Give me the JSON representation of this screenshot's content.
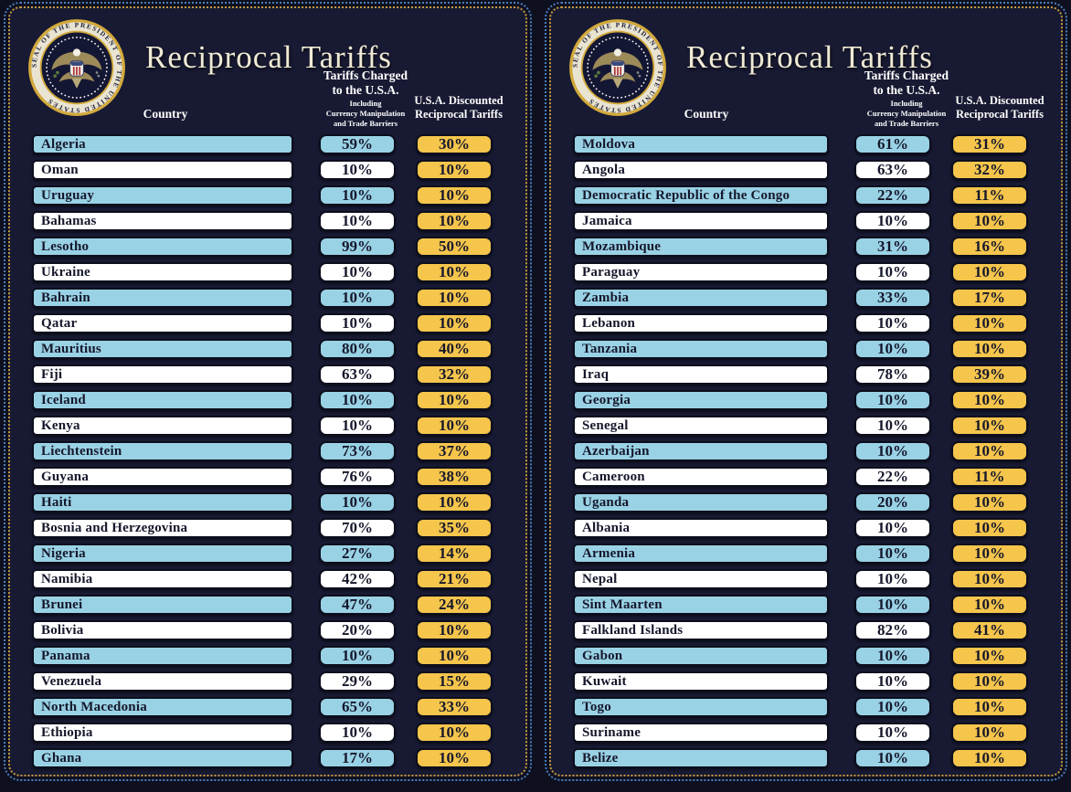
{
  "colors": {
    "page_bg": "#0f101f",
    "panel_bg": "#181a33",
    "blue": "#9ad2e5",
    "gold": "#f5c54c",
    "white_row": "#ffffff",
    "border_gold": "#c49a3f",
    "border_blue": "#4a7fc1",
    "cell_border": "#0c0e1d",
    "row_text": "#15172b",
    "header_text": "#ffffff",
    "title_text": "#f0ead4"
  },
  "header": {
    "title": "Reciprocal Tariffs",
    "country_label": "Country",
    "charged_line1": "Tariffs Charged",
    "charged_line2": "to the U.S.A.",
    "charged_sub1": "Including",
    "charged_sub2": "Currency Manipulation",
    "charged_sub3": "and Trade Barriers",
    "discount_line1": "U.S.A. Discounted",
    "discount_line2": "Reciprocal Tariffs",
    "seal_text": "SEAL OF THE PRESIDENT OF THE UNITED STATES"
  },
  "chart_data": [
    {
      "type": "table",
      "title": "Reciprocal Tariffs",
      "columns": [
        "Country",
        "Tariffs Charged to the U.S.A. Including Currency Manipulation and Trade Barriers",
        "U.S.A. Discounted Reciprocal Tariffs"
      ],
      "value_unit": "%",
      "rows": [
        [
          "Algeria",
          59,
          30
        ],
        [
          "Oman",
          10,
          10
        ],
        [
          "Uruguay",
          10,
          10
        ],
        [
          "Bahamas",
          10,
          10
        ],
        [
          "Lesotho",
          99,
          50
        ],
        [
          "Ukraine",
          10,
          10
        ],
        [
          "Bahrain",
          10,
          10
        ],
        [
          "Qatar",
          10,
          10
        ],
        [
          "Mauritius",
          80,
          40
        ],
        [
          "Fiji",
          63,
          32
        ],
        [
          "Iceland",
          10,
          10
        ],
        [
          "Kenya",
          10,
          10
        ],
        [
          "Liechtenstein",
          73,
          37
        ],
        [
          "Guyana",
          76,
          38
        ],
        [
          "Haiti",
          10,
          10
        ],
        [
          "Bosnia and Herzegovina",
          70,
          35
        ],
        [
          "Nigeria",
          27,
          14
        ],
        [
          "Namibia",
          42,
          21
        ],
        [
          "Brunei",
          47,
          24
        ],
        [
          "Bolivia",
          20,
          10
        ],
        [
          "Panama",
          10,
          10
        ],
        [
          "Venezuela",
          29,
          15
        ],
        [
          "North Macedonia",
          65,
          33
        ],
        [
          "Ethiopia",
          10,
          10
        ],
        [
          "Ghana",
          17,
          10
        ]
      ]
    },
    {
      "type": "table",
      "title": "Reciprocal Tariffs",
      "columns": [
        "Country",
        "Tariffs Charged to the U.S.A. Including Currency Manipulation and Trade Barriers",
        "U.S.A. Discounted Reciprocal Tariffs"
      ],
      "value_unit": "%",
      "rows": [
        [
          "Moldova",
          61,
          31
        ],
        [
          "Angola",
          63,
          32
        ],
        [
          "Democratic Republic of the Congo",
          22,
          11
        ],
        [
          "Jamaica",
          10,
          10
        ],
        [
          "Mozambique",
          31,
          16
        ],
        [
          "Paraguay",
          10,
          10
        ],
        [
          "Zambia",
          33,
          17
        ],
        [
          "Lebanon",
          10,
          10
        ],
        [
          "Tanzania",
          10,
          10
        ],
        [
          "Iraq",
          78,
          39
        ],
        [
          "Georgia",
          10,
          10
        ],
        [
          "Senegal",
          10,
          10
        ],
        [
          "Azerbaijan",
          10,
          10
        ],
        [
          "Cameroon",
          22,
          11
        ],
        [
          "Uganda",
          20,
          10
        ],
        [
          "Albania",
          10,
          10
        ],
        [
          "Armenia",
          10,
          10
        ],
        [
          "Nepal",
          10,
          10
        ],
        [
          "Sint Maarten",
          10,
          10
        ],
        [
          "Falkland Islands",
          82,
          41
        ],
        [
          "Gabon",
          10,
          10
        ],
        [
          "Kuwait",
          10,
          10
        ],
        [
          "Togo",
          10,
          10
        ],
        [
          "Suriname",
          10,
          10
        ],
        [
          "Belize",
          10,
          10
        ]
      ]
    }
  ]
}
